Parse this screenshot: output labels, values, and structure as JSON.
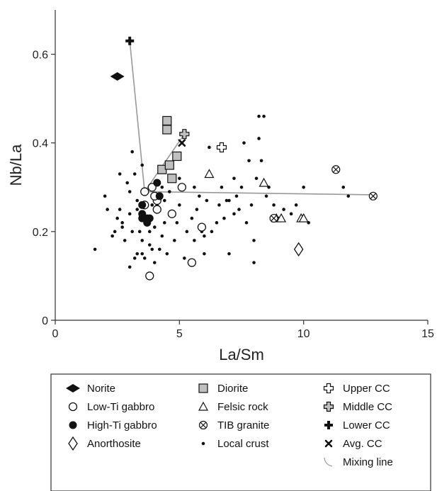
{
  "chart_data": {
    "type": "scatter",
    "xlabel": "La/Sm",
    "ylabel": "Nb/La",
    "xlim": [
      0,
      15
    ],
    "ylim": [
      0,
      0.7
    ],
    "xticks": [
      {
        "value": 0,
        "label": "0"
      },
      {
        "value": 5,
        "label": "5"
      },
      {
        "value": 10,
        "label": "10"
      },
      {
        "value": 15,
        "label": "15"
      }
    ],
    "yticks": [
      {
        "value": 0,
        "label": "0"
      },
      {
        "value": 0.2,
        "label": "0.2"
      },
      {
        "value": 0.4,
        "label": "0.4"
      },
      {
        "value": 0.6,
        "label": "0.6"
      }
    ],
    "grid": false,
    "legend_position": "below",
    "series": [
      {
        "name": "Local crust",
        "marker": "dot",
        "x": [
          1.6,
          2.0,
          2.3,
          2.4,
          2.5,
          2.6,
          2.6,
          2.7,
          2.8,
          2.9,
          3.0,
          3.0,
          3.0,
          3.1,
          3.1,
          3.2,
          3.2,
          3.3,
          3.3,
          3.3,
          3.4,
          3.5,
          3.6,
          3.7,
          3.8,
          3.9,
          3.9,
          4.0,
          4.0,
          4.2,
          4.3,
          4.3,
          4.4,
          4.4,
          4.5,
          4.6,
          4.7,
          4.8,
          5.0,
          5.0,
          5.1,
          5.2,
          5.3,
          5.4,
          5.5,
          5.6,
          5.7,
          5.8,
          5.9,
          6.0,
          6.0,
          6.1,
          6.3,
          6.5,
          6.6,
          6.7,
          6.8,
          7.0,
          7.0,
          7.2,
          7.3,
          7.4,
          7.5,
          7.6,
          7.7,
          7.8,
          7.9,
          8.0,
          8.0,
          8.1,
          8.2,
          8.3,
          8.4,
          8.5,
          8.6,
          8.8,
          9.0,
          9.2,
          9.5,
          9.7,
          10.0,
          10.2,
          2.1,
          2.7,
          3.5,
          3.8,
          4.1,
          4.9,
          5.6,
          6.2,
          6.9,
          7.2,
          8.2,
          11.6,
          11.8,
          3.5
        ],
        "y": [
          0.16,
          0.28,
          0.19,
          0.2,
          0.23,
          0.25,
          0.33,
          0.22,
          0.18,
          0.31,
          0.12,
          0.24,
          0.29,
          0.38,
          0.2,
          0.14,
          0.33,
          0.15,
          0.25,
          0.27,
          0.2,
          0.18,
          0.14,
          0.22,
          0.17,
          0.26,
          0.16,
          0.21,
          0.13,
          0.16,
          0.3,
          0.19,
          0.22,
          0.27,
          0.15,
          0.29,
          0.24,
          0.18,
          0.26,
          0.32,
          0.4,
          0.14,
          0.2,
          0.13,
          0.23,
          0.18,
          0.25,
          0.28,
          0.2,
          0.19,
          0.15,
          0.27,
          0.2,
          0.22,
          0.26,
          0.3,
          0.23,
          0.15,
          0.27,
          0.24,
          0.28,
          0.25,
          0.3,
          0.4,
          0.22,
          0.36,
          0.26,
          0.18,
          0.13,
          0.32,
          0.41,
          0.36,
          0.46,
          0.28,
          0.3,
          0.26,
          0.23,
          0.25,
          0.24,
          0.26,
          0.3,
          0.22,
          0.25,
          0.21,
          0.35,
          0.2,
          0.26,
          0.22,
          0.3,
          0.39,
          0.27,
          0.32,
          0.46,
          0.3,
          0.28,
          0.15
        ]
      },
      {
        "name": "Norite",
        "marker": "diamond-filled",
        "x": [
          2.5
        ],
        "y": [
          0.55
        ]
      },
      {
        "name": "Diorite",
        "marker": "square-gray",
        "x": [
          4.5,
          4.5,
          4.9,
          4.3,
          4.6,
          4.7
        ],
        "y": [
          0.45,
          0.43,
          0.37,
          0.34,
          0.35,
          0.32
        ]
      },
      {
        "name": "Upper CC",
        "marker": "cross-open",
        "x": [
          6.7
        ],
        "y": [
          0.39
        ]
      },
      {
        "name": "Low-Ti gabbro",
        "marker": "circle-open",
        "x": [
          3.6,
          3.6,
          3.9,
          4.1,
          4.1,
          4.0,
          4.7,
          5.1,
          5.9,
          3.8,
          5.5
        ],
        "y": [
          0.29,
          0.26,
          0.3,
          0.27,
          0.25,
          0.28,
          0.24,
          0.3,
          0.21,
          0.1,
          0.13
        ]
      },
      {
        "name": "Felsic rock",
        "marker": "triangle-open",
        "x": [
          6.2,
          8.4,
          8.9,
          9.1,
          9.9,
          10.0
        ],
        "y": [
          0.33,
          0.31,
          0.23,
          0.23,
          0.23,
          0.23
        ]
      },
      {
        "name": "Middle CC",
        "marker": "cross-gray",
        "x": [
          5.2
        ],
        "y": [
          0.42
        ]
      },
      {
        "name": "High-Ti gabbro",
        "marker": "circle-filled",
        "x": [
          3.5,
          3.6,
          3.7,
          3.8,
          3.5,
          4.1,
          3.5,
          4.2,
          3.7
        ],
        "y": [
          0.23,
          0.23,
          0.23,
          0.23,
          0.24,
          0.31,
          0.26,
          0.28,
          0.22
        ]
      },
      {
        "name": "TIB granite",
        "marker": "circle-x",
        "x": [
          11.3,
          12.8,
          8.8
        ],
        "y": [
          0.34,
          0.28,
          0.23
        ]
      },
      {
        "name": "Lower CC",
        "marker": "cross-filled",
        "x": [
          3.0
        ],
        "y": [
          0.63
        ]
      },
      {
        "name": "Anorthosite",
        "marker": "diamond-open",
        "x": [
          9.8
        ],
        "y": [
          0.16
        ]
      },
      {
        "name": "Avg. CC",
        "marker": "x-mark",
        "x": [
          5.1
        ],
        "y": [
          0.4
        ]
      },
      {
        "name": "Mixing line",
        "marker": "line",
        "lines": [
          {
            "x": [
              3.0,
              3.6,
              5.2
            ],
            "y": [
              0.63,
              0.29,
              0.42
            ]
          },
          {
            "x": [
              3.6,
              12.8
            ],
            "y": [
              0.29,
              0.283
            ]
          }
        ]
      }
    ],
    "colors": {
      "line": "#999999",
      "gray_fill": "#bfbfbf",
      "marker": "#111111"
    }
  },
  "legend": {
    "columns": [
      [
        {
          "label": "Norite",
          "marker": "diamond-filled"
        },
        {
          "label": "Low-Ti gabbro",
          "marker": "circle-open"
        },
        {
          "label": "High-Ti gabbro",
          "marker": "circle-filled"
        },
        {
          "label": "Anorthosite",
          "marker": "diamond-open"
        }
      ],
      [
        {
          "label": "Diorite",
          "marker": "square-gray"
        },
        {
          "label": "Felsic rock",
          "marker": "triangle-open"
        },
        {
          "label": "TIB granite",
          "marker": "circle-x"
        },
        {
          "label": "Local crust",
          "marker": "dot"
        }
      ],
      [
        {
          "label": "Upper CC",
          "marker": "cross-open"
        },
        {
          "label": "Middle CC",
          "marker": "cross-gray"
        },
        {
          "label": "Lower CC",
          "marker": "cross-filled"
        },
        {
          "label": "Avg. CC",
          "marker": "x-mark"
        },
        {
          "label": "Mixing line",
          "marker": "line"
        }
      ]
    ]
  }
}
